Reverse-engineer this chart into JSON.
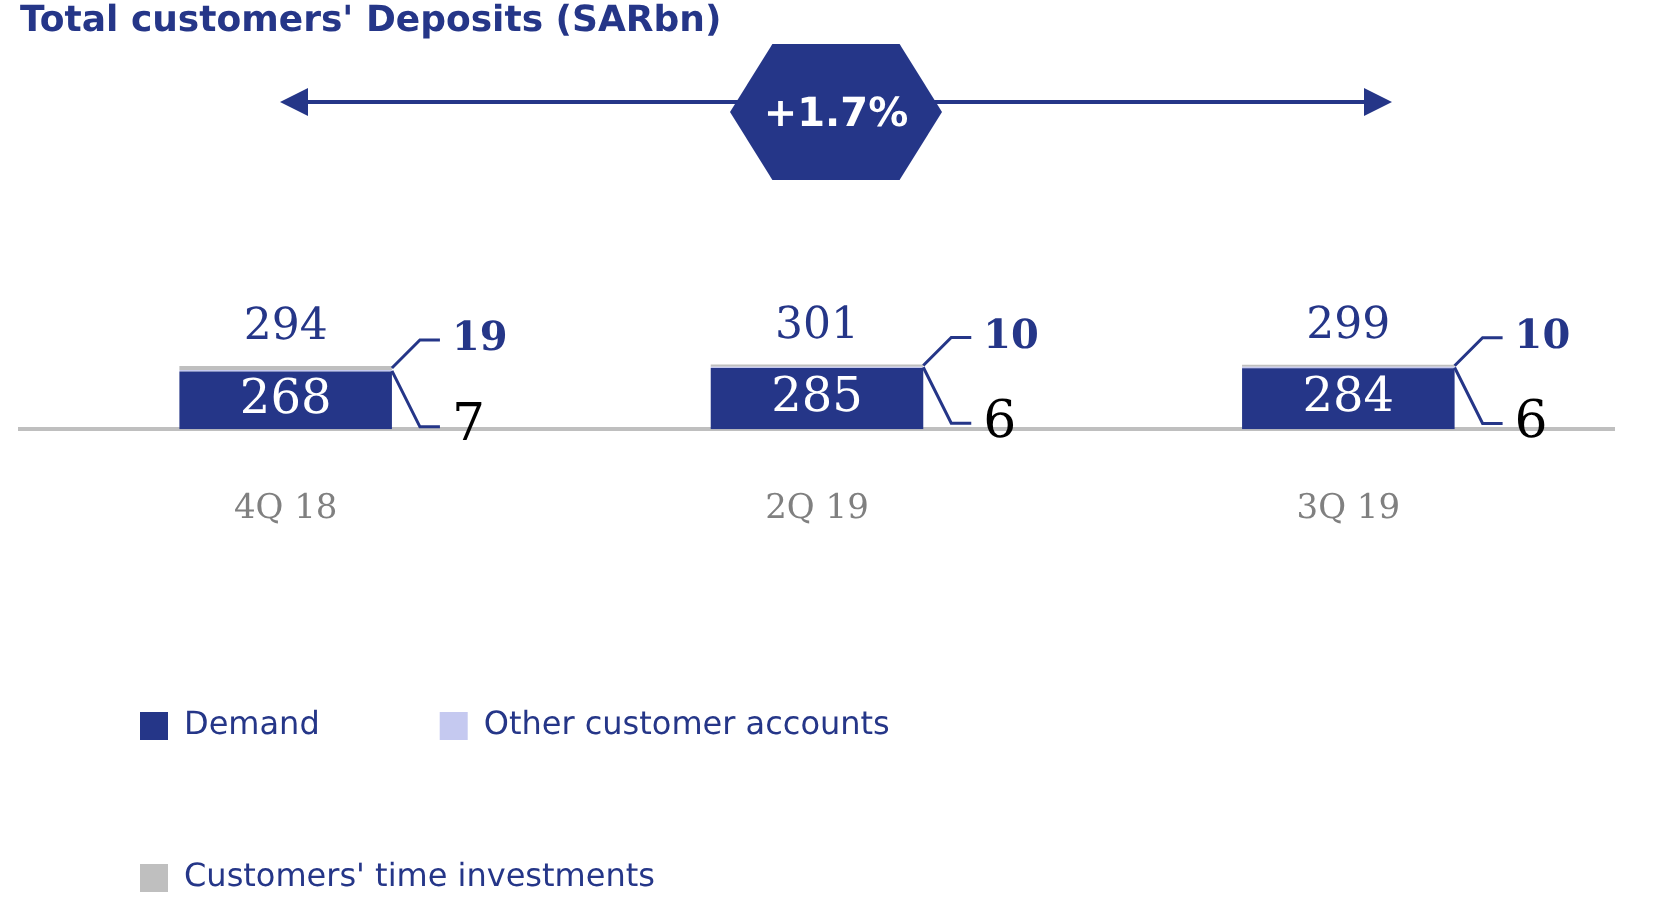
{
  "chart_data": {
    "type": "bar",
    "title": "Total customers' Deposits (SARbn)",
    "stacked": true,
    "categories": [
      "4Q 18",
      "2Q 19",
      "3Q 19"
    ],
    "series": [
      {
        "name": "Demand",
        "color": "#253688",
        "values": [
          268,
          285,
          284
        ]
      },
      {
        "name": "Other customer accounts",
        "color": "#c5c9f0",
        "values": [
          7,
          6,
          6
        ]
      },
      {
        "name": "Customers' time investments",
        "color": "#bfbfbf",
        "values": [
          19,
          10,
          10
        ]
      }
    ],
    "data_labels": true,
    "totals": [
      "294",
      "301",
      "299"
    ],
    "annotations": [
      "+1.7%"
    ],
    "legend": "bottom",
    "grid": false
  }
}
